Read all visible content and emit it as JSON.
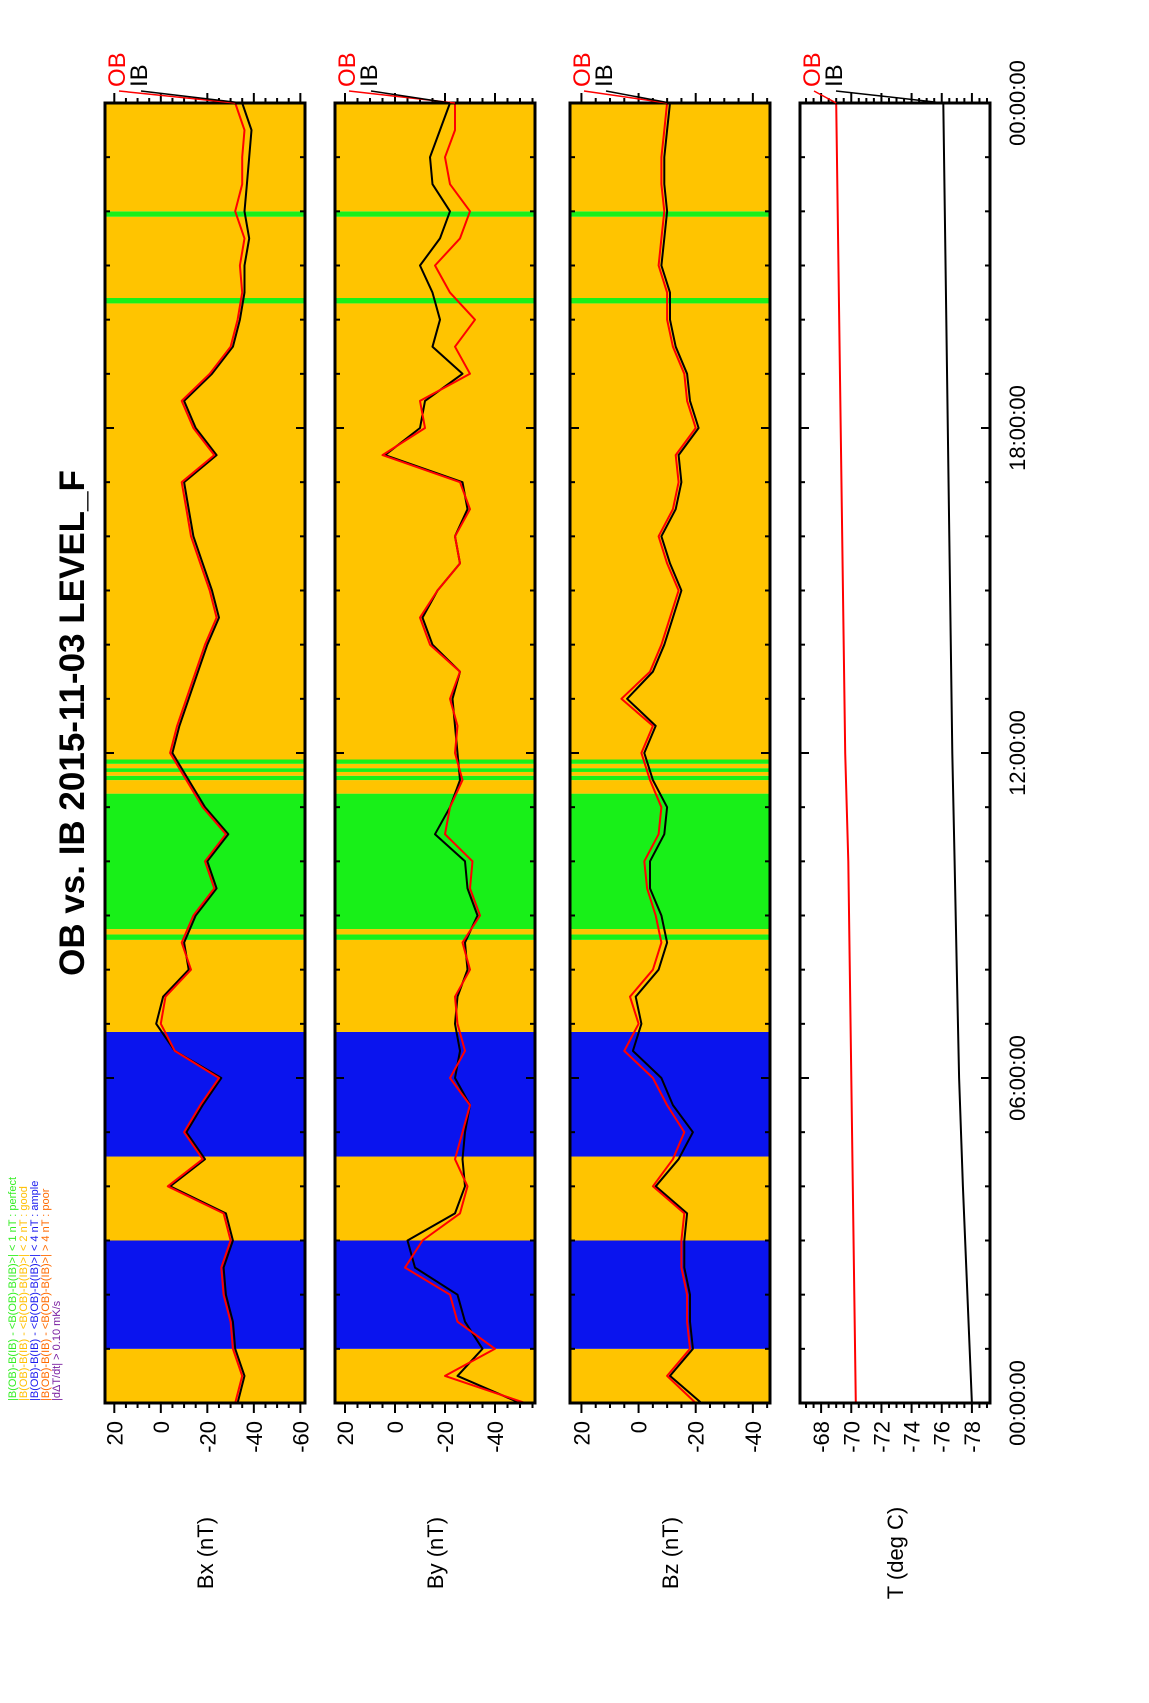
{
  "chart_data": {
    "type": "line",
    "title": "OB vs. IB    2015-11-03 LEVEL_F",
    "x_axis": {
      "range": [
        "00:00:00",
        "24:00:00"
      ],
      "tick_labels": [
        "00:00:00",
        "06:00:00",
        "12:00:00",
        "18:00:00",
        "00:00:00"
      ],
      "minor_tick_hours": 1
    },
    "legend": [
      {
        "text": "|B(OB)-B(IB) - <B(OB)-B(IB)>| < 1 nT  : perfect",
        "color": "#33ee22"
      },
      {
        "text": "|B(OB)-B(IB) - <B(OB)-B(IB)>| < 2 nT  : good",
        "color": "#ffbf00"
      },
      {
        "text": "|B(OB)-B(IB) - <B(OB)-B(IB)>| < 4 nT  : ample",
        "color": "#1a1aee"
      },
      {
        "text": "|B(OB)-B(IB) - <B(OB)-B(IB)>| > 4 nT  : poor",
        "color": "#ff6a00"
      },
      {
        "text": "|dΔT/dt|         >  0.10 mK/s",
        "color": "#7a1fa0"
      }
    ],
    "quality_colors": {
      "perfect": "#18f018",
      "good": "#ffc400",
      "ample": "#0a14ee",
      "poor": "#ff6a00"
    },
    "quality_intervals_hours": [
      {
        "start": 0.0,
        "end": 1.0,
        "class": "good"
      },
      {
        "start": 1.0,
        "end": 3.0,
        "class": "ample"
      },
      {
        "start": 3.0,
        "end": 4.55,
        "class": "good"
      },
      {
        "start": 4.55,
        "end": 6.85,
        "class": "ample"
      },
      {
        "start": 6.85,
        "end": 8.55,
        "class": "good"
      },
      {
        "start": 8.55,
        "end": 8.65,
        "class": "perfect"
      },
      {
        "start": 8.65,
        "end": 8.75,
        "class": "good"
      },
      {
        "start": 8.75,
        "end": 11.25,
        "class": "perfect"
      },
      {
        "start": 11.25,
        "end": 11.5,
        "class": "good"
      },
      {
        "start": 11.5,
        "end": 11.58,
        "class": "perfect"
      },
      {
        "start": 11.58,
        "end": 11.65,
        "class": "good"
      },
      {
        "start": 11.65,
        "end": 11.72,
        "class": "perfect"
      },
      {
        "start": 11.72,
        "end": 11.8,
        "class": "good"
      },
      {
        "start": 11.8,
        "end": 11.88,
        "class": "perfect"
      },
      {
        "start": 11.88,
        "end": 20.3,
        "class": "good"
      },
      {
        "start": 20.3,
        "end": 20.4,
        "class": "perfect"
      },
      {
        "start": 20.4,
        "end": 21.9,
        "class": "good"
      },
      {
        "start": 21.9,
        "end": 22.0,
        "class": "perfect"
      },
      {
        "start": 22.0,
        "end": 24.0,
        "class": "good"
      }
    ],
    "series_colors": {
      "OB": "#ff0000",
      "IB": "#000000"
    },
    "panels": [
      {
        "ylabel": "Bx (nT)",
        "ylim": [
          -62,
          24
        ],
        "yticks": [
          20,
          0,
          -20,
          -40,
          -60
        ],
        "series_labels": [
          "OB",
          "IB"
        ],
        "x_hours": [
          0,
          0.5,
          1,
          1.5,
          2,
          2.5,
          3,
          3.5,
          4,
          4.5,
          5,
          5.5,
          6,
          6.5,
          7,
          7.5,
          8,
          8.5,
          9,
          9.5,
          10,
          10.5,
          11,
          11.5,
          12,
          12.5,
          13,
          13.5,
          14,
          14.5,
          15,
          15.5,
          16,
          16.5,
          17,
          17.5,
          18,
          18.5,
          19,
          19.5,
          20,
          20.5,
          21,
          21.5,
          22,
          22.5,
          23,
          23.5,
          24
        ],
        "OB": [
          -32,
          -35,
          -31,
          -30,
          -27,
          -26,
          -30,
          -27,
          -3,
          -18,
          -10,
          -17,
          -25,
          -6,
          0,
          -2,
          -13,
          -9,
          -14,
          -23,
          -19,
          -28,
          -18,
          -11,
          -4,
          -7,
          -11,
          -15,
          -19,
          -24,
          -21,
          -17,
          -13,
          -11,
          -9,
          -23,
          -14,
          -9,
          -21,
          -30,
          -33,
          -35,
          -34,
          -36,
          -32,
          -35,
          -35,
          -36,
          -32
        ],
        "IB": [
          -33,
          -36,
          -32,
          -31,
          -28,
          -27,
          -31,
          -28,
          -4,
          -19,
          -11,
          -18,
          -26,
          -6,
          2,
          -1,
          -12,
          -10,
          -15,
          -24,
          -20,
          -29,
          -19,
          -12,
          -5,
          -8,
          -12,
          -16,
          -20,
          -25,
          -22,
          -18,
          -14,
          -12,
          -10,
          -24,
          -15,
          -10,
          -22,
          -31,
          -34,
          -36,
          -36,
          -38,
          -36,
          -37,
          -38,
          -39,
          -35
        ]
      },
      {
        "ylabel": "By (nT)",
        "ylim": [
          -56,
          24
        ],
        "yticks": [
          20,
          0,
          -20,
          -40
        ],
        "series_labels": [
          "OB",
          "IB"
        ],
        "x_hours": [
          0,
          0.5,
          1,
          1.5,
          2,
          2.5,
          3,
          3.5,
          4,
          4.5,
          5,
          5.5,
          6,
          6.5,
          7,
          7.5,
          8,
          8.5,
          9,
          9.5,
          10,
          10.5,
          11,
          11.5,
          12,
          12.5,
          13,
          13.5,
          14,
          14.5,
          15,
          15.5,
          16,
          16.5,
          17,
          17.5,
          18,
          18.5,
          19,
          19.5,
          20,
          20.5,
          21,
          21.5,
          22,
          22.5,
          23,
          23.5,
          24
        ],
        "OB": [
          -52,
          -20,
          -40,
          -25,
          -22,
          -4,
          -11,
          -26,
          -29,
          -24,
          -27,
          -30,
          -22,
          -28,
          -25,
          -24,
          -30,
          -27,
          -34,
          -30,
          -31,
          -20,
          -22,
          -27,
          -24,
          -25,
          -22,
          -26,
          -14,
          -10,
          -17,
          -26,
          -24,
          -30,
          -26,
          5,
          -12,
          -10,
          -30,
          -24,
          -32,
          -22,
          -16,
          -26,
          -30,
          -22,
          -20,
          -24,
          -24
        ],
        "IB": [
          -50,
          -25,
          -35,
          -28,
          -25,
          -8,
          -5,
          -24,
          -28,
          -27,
          -28,
          -30,
          -24,
          -26,
          -24,
          -25,
          -29,
          -28,
          -33,
          -29,
          -28,
          -16,
          -22,
          -26,
          -25,
          -24,
          -23,
          -26,
          -15,
          -11,
          -17,
          -26,
          -24,
          -29,
          -27,
          4,
          -10,
          -12,
          -27,
          -15,
          -18,
          -15,
          -10,
          -18,
          -22,
          -15,
          -14,
          -18,
          -22
        ]
      },
      {
        "ylabel": "Bz (nT)",
        "ylim": [
          -46,
          24
        ],
        "yticks": [
          20,
          0,
          -20,
          -40
        ],
        "series_labels": [
          "OB",
          "IB"
        ],
        "x_hours": [
          0,
          0.5,
          1,
          1.5,
          2,
          2.5,
          3,
          3.5,
          4,
          4.5,
          5,
          5.5,
          6,
          6.5,
          7,
          7.5,
          8,
          8.5,
          9,
          9.5,
          10,
          10.5,
          11,
          11.5,
          12,
          12.5,
          13,
          13.5,
          14,
          14.5,
          15,
          15.5,
          16,
          16.5,
          17,
          17.5,
          18,
          18.5,
          19,
          19.5,
          20,
          20.5,
          21,
          21.5,
          22,
          22.5,
          23,
          23.5,
          24
        ],
        "OB": [
          -20,
          -10,
          -18,
          -17,
          -17,
          -15,
          -15,
          -16,
          -5,
          -12,
          -16,
          -10,
          -5,
          5,
          0,
          3,
          -5,
          -8,
          -6,
          -3,
          -2,
          -7,
          -8,
          -4,
          -1,
          -5,
          6,
          -4,
          -8,
          -11,
          -14,
          -10,
          -7,
          -12,
          -14,
          -13,
          -20,
          -17,
          -16,
          -12,
          -10,
          -10,
          -7,
          -8,
          -9,
          -8,
          -8,
          -9,
          -10
        ],
        "IB": [
          -22,
          -11,
          -19,
          -18,
          -18,
          -16,
          -16,
          -17,
          -6,
          -14,
          -19,
          -12,
          -8,
          2,
          -1,
          1,
          -7,
          -10,
          -8,
          -4,
          -4,
          -9,
          -10,
          -5,
          -2,
          -6,
          4,
          -5,
          -9,
          -12,
          -15,
          -11,
          -8,
          -13,
          -15,
          -14,
          -21,
          -18,
          -17,
          -13,
          -11,
          -11,
          -8,
          -9,
          -10,
          -9,
          -9,
          -10,
          -11
        ]
      },
      {
        "ylabel": "T (deg C)",
        "ylim": [
          -79.2,
          -66.6
        ],
        "yticks": [
          -68,
          -70,
          -72,
          -74,
          -76,
          -78
        ],
        "series_labels": [
          "OB",
          "IB"
        ],
        "x_hours": [
          0,
          2,
          4,
          6,
          8,
          10,
          12,
          14,
          16,
          18,
          20,
          22,
          24
        ],
        "OB": [
          -70.3,
          -70.2,
          -70.1,
          -70.0,
          -69.9,
          -69.8,
          -69.6,
          -69.5,
          -69.4,
          -69.3,
          -69.2,
          -69.1,
          -69.0
        ],
        "IB": [
          -78.0,
          -77.7,
          -77.4,
          -77.15,
          -77.0,
          -76.85,
          -76.7,
          -76.6,
          -76.5,
          -76.4,
          -76.3,
          -76.2,
          -76.1
        ]
      }
    ]
  }
}
